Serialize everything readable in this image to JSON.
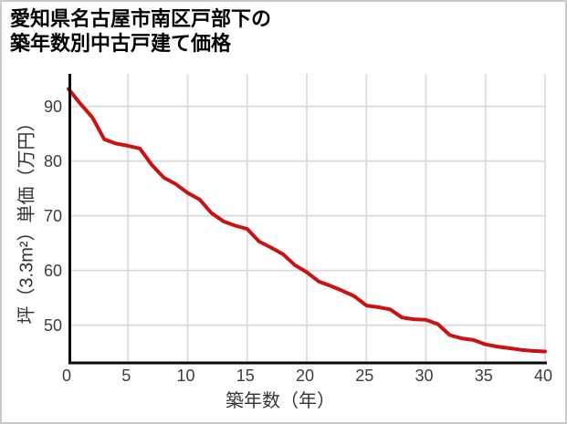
{
  "title": {
    "line1": "愛知県名古屋市南区戸部下の",
    "line2": "築年数別中古戸建て価格"
  },
  "chart_data": {
    "type": "line",
    "title": "愛知県名古屋市南区戸部下の築年数別中古戸建て価格",
    "xlabel": "築年数（年）",
    "ylabel": "坪（3.3m²）単価（万円）",
    "x": [
      0,
      1,
      2,
      3,
      4,
      5,
      6,
      7,
      8,
      9,
      10,
      11,
      12,
      13,
      14,
      15,
      16,
      17,
      18,
      19,
      20,
      21,
      22,
      23,
      24,
      25,
      26,
      27,
      28,
      29,
      30,
      31,
      32,
      33,
      34,
      35,
      36,
      37,
      38,
      39,
      40
    ],
    "values": [
      93.2,
      90.5,
      88.0,
      84.0,
      83.2,
      82.8,
      82.3,
      79.3,
      77.0,
      75.8,
      74.2,
      73.0,
      70.5,
      69.0,
      68.2,
      67.6,
      65.3,
      64.2,
      63.0,
      61.0,
      59.7,
      58.0,
      57.2,
      56.3,
      55.3,
      53.6,
      53.3,
      52.9,
      51.4,
      51.1,
      51.0,
      50.2,
      48.2,
      47.6,
      47.3,
      46.5,
      46.1,
      45.8,
      45.5,
      45.3,
      45.2
    ],
    "x_ticks": [
      0,
      5,
      10,
      15,
      20,
      25,
      30,
      35,
      40
    ],
    "y_ticks": [
      50,
      60,
      70,
      80,
      90
    ],
    "xlim": [
      0,
      40
    ],
    "ylim": [
      43.1,
      96
    ],
    "grid": true,
    "legend": false
  },
  "colors": {
    "line": "#cc1111",
    "grid": "#dcdcdc",
    "axis": "#0a0a0a",
    "tick_text": "#3d3d3d",
    "frame_border": "#c9c9c9"
  }
}
